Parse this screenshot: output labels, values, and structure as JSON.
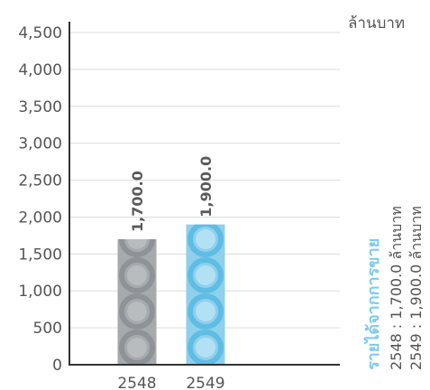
{
  "chart_data": {
    "type": "bar",
    "unit_label": "ล้านบาท",
    "categories": [
      "2548",
      "2549"
    ],
    "values": [
      1700.0,
      1900.0
    ],
    "data_labels": [
      "1,700.0",
      "1,900.0"
    ],
    "ylim": [
      0,
      4500
    ],
    "yticks": [
      {
        "value": 0,
        "label": "0"
      },
      {
        "value": 500,
        "label": "500"
      },
      {
        "value": 1000,
        "label": "1,000"
      },
      {
        "value": 1500,
        "label": "1,500"
      },
      {
        "value": 2000,
        "label": "2,000"
      },
      {
        "value": 2500,
        "label": "2,500"
      },
      {
        "value": 3000,
        "label": "3,000"
      },
      {
        "value": 3500,
        "label": "3,500"
      },
      {
        "value": 4000,
        "label": "4,000"
      },
      {
        "value": 4500,
        "label": "4,500"
      }
    ],
    "bar_colors": [
      "#a7aaad",
      "#8fd0ec"
    ],
    "grid": true,
    "legend": {
      "title": "รายได้จากการขาย",
      "title_color": "#7fcbea",
      "entries": [
        "2548 : 1,700.0 ล้านบาท",
        "2549 : 1,900.0 ล้านบาท"
      ]
    }
  }
}
